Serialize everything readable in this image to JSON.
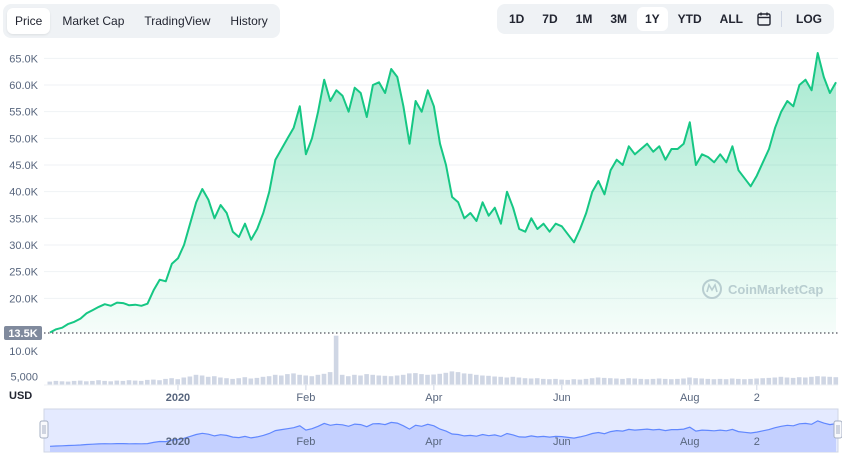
{
  "tabs": [
    {
      "label": "Price",
      "active": true
    },
    {
      "label": "Market Cap",
      "active": false
    },
    {
      "label": "TradingView",
      "active": false
    },
    {
      "label": "History",
      "active": false
    }
  ],
  "ranges": [
    {
      "label": "1D",
      "active": false
    },
    {
      "label": "7D",
      "active": false
    },
    {
      "label": "1M",
      "active": false
    },
    {
      "label": "3M",
      "active": false
    },
    {
      "label": "1Y",
      "active": true
    },
    {
      "label": "YTD",
      "active": false
    },
    {
      "label": "ALL",
      "active": false
    }
  ],
  "log_label": "LOG",
  "currency_label": "USD",
  "watermark": "CoinMarketCap",
  "colors": {
    "line": "#16c784",
    "area": "#16c784",
    "volume": "#cfd6e4",
    "navigator": "#6188ff"
  },
  "chart_data": {
    "type": "area",
    "y_ticks": [
      {
        "value": 20000,
        "label": "20.0K"
      },
      {
        "value": 25000,
        "label": "25.0K"
      },
      {
        "value": 30000,
        "label": "30.0K"
      },
      {
        "value": 35000,
        "label": "35.0K"
      },
      {
        "value": 40000,
        "label": "40.0K"
      },
      {
        "value": 45000,
        "label": "45.0K"
      },
      {
        "value": 50000,
        "label": "50.0K"
      },
      {
        "value": 55000,
        "label": "55.0K"
      },
      {
        "value": 60000,
        "label": "60.0K"
      },
      {
        "value": 65000,
        "label": "65.0K"
      }
    ],
    "ylim": [
      13500,
      67500
    ],
    "baseline_value": 13500,
    "baseline_label": "13.5K",
    "x_ticks": [
      "2020",
      "Feb",
      "Apr",
      "Jun",
      "Aug",
      "2"
    ],
    "price": [
      13600,
      14200,
      14500,
      15200,
      15600,
      16200,
      17200,
      17800,
      18400,
      18900,
      18600,
      19200,
      19100,
      18700,
      18800,
      18600,
      19000,
      21500,
      23500,
      23200,
      26500,
      27500,
      30000,
      34000,
      38000,
      40500,
      38500,
      35000,
      37500,
      36000,
      32500,
      31500,
      34000,
      31000,
      33000,
      36000,
      40000,
      46000,
      48000,
      50000,
      52000,
      56000,
      47000,
      50000,
      55000,
      61000,
      57000,
      59000,
      58000,
      55000,
      59500,
      58500,
      54000,
      60000,
      60500,
      58500,
      63000,
      61500,
      56000,
      49000,
      57000,
      55000,
      59000,
      56000,
      49000,
      45000,
      39000,
      38000,
      35000,
      36000,
      34500,
      38000,
      35500,
      37000,
      34000,
      40000,
      37000,
      33000,
      32500,
      35000,
      33000,
      34000,
      32500,
      34000,
      33500,
      32000,
      30500,
      33000,
      36000,
      40000,
      42000,
      39500,
      44000,
      46000,
      45000,
      48500,
      47000,
      48000,
      49000,
      47500,
      48500,
      46000,
      48000,
      48000,
      49000,
      53000,
      45000,
      47000,
      46500,
      45500,
      47000,
      45500,
      48500,
      44000,
      42500,
      41000,
      43000,
      45500,
      48000,
      52000,
      55000,
      57000,
      56000,
      60000,
      61000,
      59000,
      66000,
      61500,
      58500,
      60500
    ],
    "volume": [
      0.1,
      0.12,
      0.11,
      0.1,
      0.12,
      0.13,
      0.11,
      0.12,
      0.14,
      0.12,
      0.11,
      0.13,
      0.12,
      0.14,
      0.13,
      0.12,
      0.15,
      0.16,
      0.14,
      0.18,
      0.2,
      0.17,
      0.22,
      0.25,
      0.3,
      0.28,
      0.24,
      0.26,
      0.22,
      0.2,
      0.18,
      0.2,
      0.23,
      0.19,
      0.21,
      0.24,
      0.26,
      0.3,
      0.28,
      0.32,
      0.34,
      0.3,
      0.28,
      0.26,
      0.3,
      0.33,
      0.38,
      1.45,
      0.3,
      0.26,
      0.3,
      0.28,
      0.32,
      0.3,
      0.28,
      0.27,
      0.26,
      0.28,
      0.3,
      0.34,
      0.35,
      0.32,
      0.3,
      0.31,
      0.33,
      0.36,
      0.4,
      0.38,
      0.34,
      0.33,
      0.3,
      0.28,
      0.27,
      0.25,
      0.24,
      0.22,
      0.24,
      0.22,
      0.2,
      0.19,
      0.2,
      0.18,
      0.17,
      0.18,
      0.16,
      0.15,
      0.17,
      0.16,
      0.18,
      0.2,
      0.22,
      0.21,
      0.2,
      0.19,
      0.18,
      0.2,
      0.19,
      0.18,
      0.17,
      0.18,
      0.19,
      0.18,
      0.17,
      0.18,
      0.19,
      0.22,
      0.2,
      0.19,
      0.18,
      0.17,
      0.18,
      0.17,
      0.19,
      0.18,
      0.17,
      0.18,
      0.19,
      0.2,
      0.21,
      0.22,
      0.24,
      0.22,
      0.21,
      0.23,
      0.22,
      0.24,
      0.26,
      0.25,
      0.24,
      0.23
    ],
    "volume_ticks": [
      {
        "value": 0.25,
        "label": "5,000"
      },
      {
        "value": 1.0,
        "label": "10.0K"
      }
    ]
  }
}
